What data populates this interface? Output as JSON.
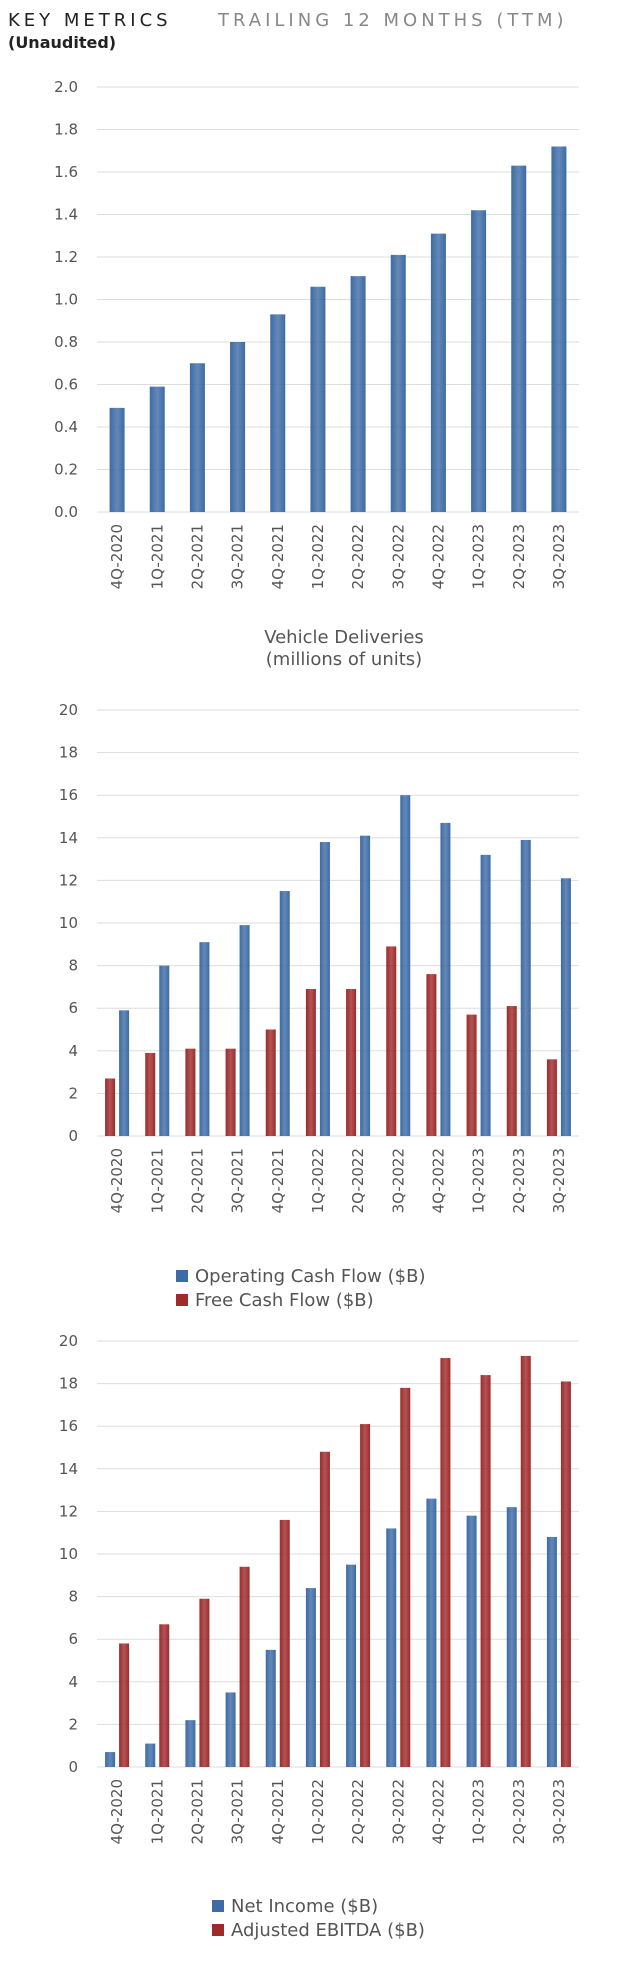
{
  "header": {
    "title": "KEY METRICS",
    "subtitle": "TRAILING 12 MONTHS (TTM)",
    "note": "(Unaudited)"
  },
  "chart_data": [
    {
      "type": "bar",
      "categories": [
        "4Q-2020",
        "1Q-2021",
        "2Q-2021",
        "3Q-2021",
        "4Q-2021",
        "1Q-2022",
        "2Q-2022",
        "3Q-2022",
        "4Q-2022",
        "1Q-2023",
        "2Q-2023",
        "3Q-2023"
      ],
      "series": [
        {
          "name": null,
          "color": "#3d6ba5",
          "values": [
            0.49,
            0.59,
            0.7,
            0.8,
            0.93,
            1.06,
            1.11,
            1.21,
            1.31,
            1.42,
            1.63,
            1.72
          ]
        }
      ],
      "x_label": [
        "Vehicle Deliveries",
        "(millions of units)"
      ],
      "ylim": [
        0,
        2
      ],
      "yticks": [
        {
          "value": 0,
          "label": "0.0"
        },
        {
          "value": 0.2,
          "label": "0.2"
        },
        {
          "value": 0.4,
          "label": "0.4"
        },
        {
          "value": 0.6,
          "label": "0.6"
        },
        {
          "value": 0.8,
          "label": "0.8"
        },
        {
          "value": 1,
          "label": "1.0"
        },
        {
          "value": 1.2,
          "label": "1.2"
        },
        {
          "value": 1.4,
          "label": "1.4"
        },
        {
          "value": 1.6,
          "label": "1.6"
        },
        {
          "value": 1.8,
          "label": "1.8"
        },
        {
          "value": 2,
          "label": "2.0"
        }
      ],
      "grid": true
    },
    {
      "type": "bar",
      "categories": [
        "4Q-2020",
        "1Q-2021",
        "2Q-2021",
        "3Q-2021",
        "4Q-2021",
        "1Q-2022",
        "2Q-2022",
        "3Q-2022",
        "4Q-2022",
        "1Q-2023",
        "2Q-2023",
        "3Q-2023"
      ],
      "series": [
        {
          "name": "Operating Cash Flow ($B)",
          "color": "#3d6ba5",
          "values": [
            5.9,
            8.0,
            9.1,
            9.9,
            11.5,
            13.8,
            14.1,
            16.0,
            14.7,
            13.2,
            13.9,
            12.1
          ]
        },
        {
          "name": "Free Cash Flow ($B)",
          "color": "#9e2a2b",
          "values": [
            2.7,
            3.9,
            4.1,
            4.1,
            5.0,
            6.9,
            6.9,
            8.9,
            7.6,
            5.7,
            6.1,
            3.6
          ]
        }
      ],
      "ylim": [
        0,
        20
      ],
      "yticks": [
        0,
        2,
        4,
        6,
        8,
        10,
        12,
        14,
        16,
        18,
        20
      ],
      "grid": true
    },
    {
      "type": "bar",
      "categories": [
        "4Q-2020",
        "1Q-2021",
        "2Q-2021",
        "3Q-2021",
        "4Q-2021",
        "1Q-2022",
        "2Q-2022",
        "3Q-2022",
        "4Q-2022",
        "1Q-2023",
        "2Q-2023",
        "3Q-2023"
      ],
      "series": [
        {
          "name": "Net Income ($B)",
          "color": "#3d6ba5",
          "values": [
            0.7,
            1.1,
            2.2,
            3.5,
            5.5,
            8.4,
            9.5,
            11.2,
            12.6,
            11.8,
            12.2,
            10.8
          ]
        },
        {
          "name": "Adjusted EBITDA ($B)",
          "color": "#9e2a2b",
          "values": [
            5.8,
            6.7,
            7.9,
            9.4,
            11.6,
            14.8,
            16.1,
            17.8,
            19.2,
            18.4,
            19.3,
            18.1
          ]
        }
      ],
      "ylim": [
        0,
        20
      ],
      "yticks": [
        0,
        2,
        4,
        6,
        8,
        10,
        12,
        14,
        16,
        18,
        20
      ],
      "grid": true
    }
  ]
}
